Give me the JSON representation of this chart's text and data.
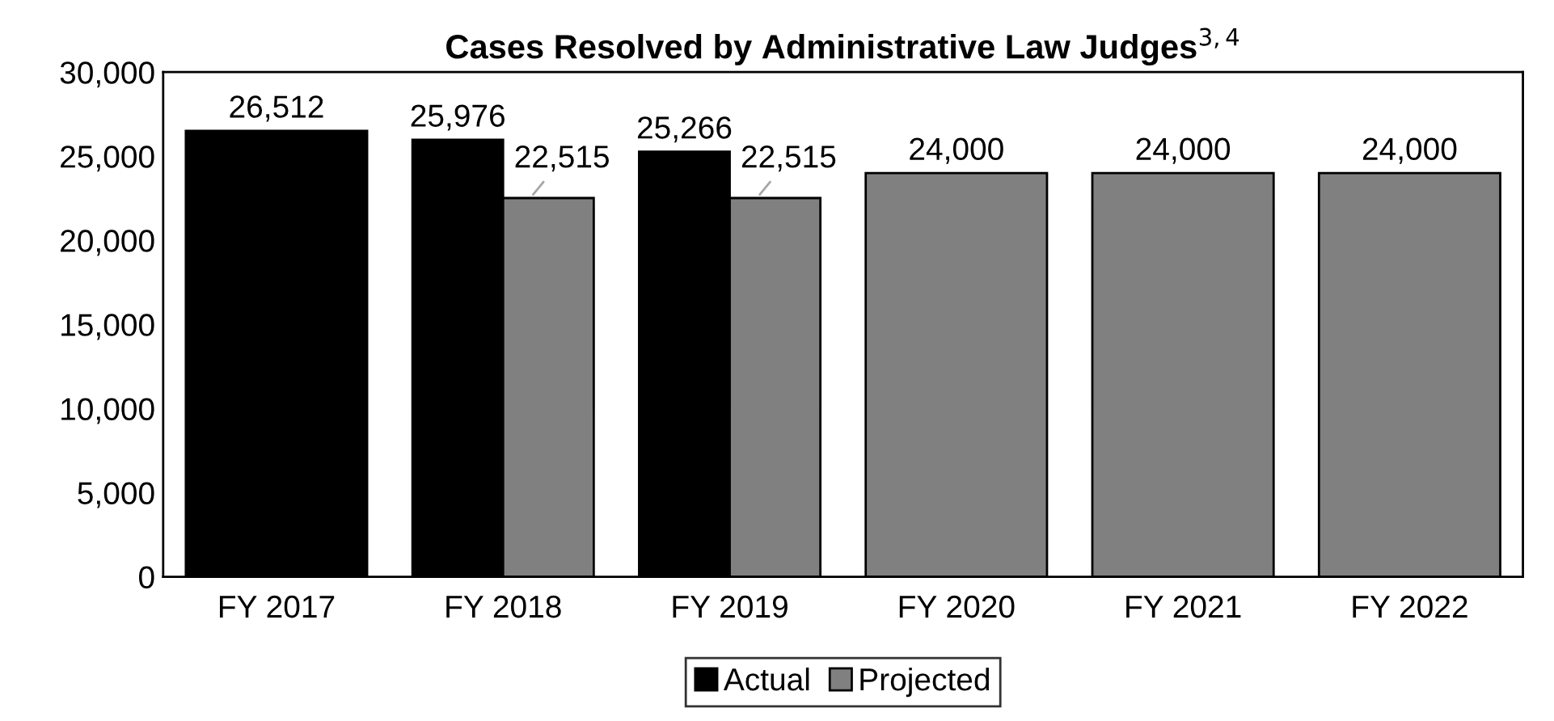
{
  "chart_data": {
    "type": "bar",
    "title": "Cases Resolved by Administrative Law Judges$^{3,4}$",
    "categories": [
      "FY 2017",
      "FY 2018",
      "FY 2019",
      "FY 2020",
      "FY 2021",
      "FY 2022"
    ],
    "series": [
      {
        "name": "Actual",
        "color": "#000000",
        "values": [
          26512,
          25976,
          25266,
          null,
          null,
          null
        ],
        "value_labels": [
          "26,512",
          "25,976",
          "25,266",
          null,
          null,
          null
        ]
      },
      {
        "name": "Projected",
        "color": "#808080",
        "values": [
          null,
          22515,
          22515,
          24000,
          24000,
          24000
        ],
        "value_labels": [
          null,
          "22,515",
          "22,515",
          "24,000",
          "24,000",
          "24,000"
        ]
      }
    ],
    "ylim": [
      0,
      30000
    ],
    "yticks": [
      0,
      {
        "value": 5000,
        "label": "5,000"
      },
      {
        "value": 10000,
        "label": "10,000"
      },
      {
        "value": 15000,
        "label": "15,000"
      },
      {
        "value": 20000,
        "label": "20,000"
      },
      {
        "value": 25000,
        "label": "25,000"
      },
      {
        "value": 30000,
        "label": "30,000"
      }
    ],
    "grid": false,
    "legend": "bottom"
  }
}
